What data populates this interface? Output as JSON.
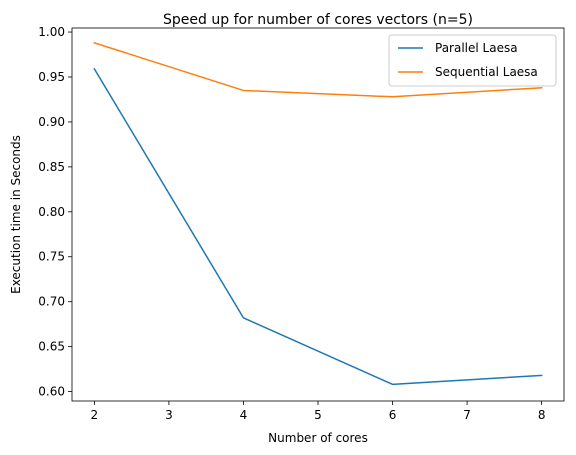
{
  "chart_data": {
    "type": "line",
    "title": "Speed up for number of cores vectors (n=5)",
    "xlabel": "Number of cores",
    "ylabel": "Execution time in Seconds",
    "x": [
      2,
      4,
      6,
      8
    ],
    "xlim": [
      1.7,
      8.3
    ],
    "ylim": [
      0.5895,
      1.0045
    ],
    "xticks": [
      2,
      3,
      4,
      5,
      6,
      7,
      8
    ],
    "yticks": [
      0.6,
      0.65,
      0.7,
      0.75,
      0.8,
      0.85,
      0.9,
      0.95,
      1.0
    ],
    "xtick_labels": [
      "2",
      "3",
      "4",
      "5",
      "6",
      "7",
      "8"
    ],
    "ytick_labels": [
      "0.60",
      "0.65",
      "0.70",
      "0.75",
      "0.80",
      "0.85",
      "0.90",
      "0.95",
      "1.00"
    ],
    "grid": false,
    "legend_position": "top-right",
    "series": [
      {
        "name": "Parallel Laesa",
        "color": "#1f77b4",
        "values": [
          0.959,
          0.682,
          0.608,
          0.618
        ]
      },
      {
        "name": "Sequential Laesa",
        "color": "#ff7f0e",
        "values": [
          0.988,
          0.935,
          0.928,
          0.938
        ]
      }
    ]
  }
}
